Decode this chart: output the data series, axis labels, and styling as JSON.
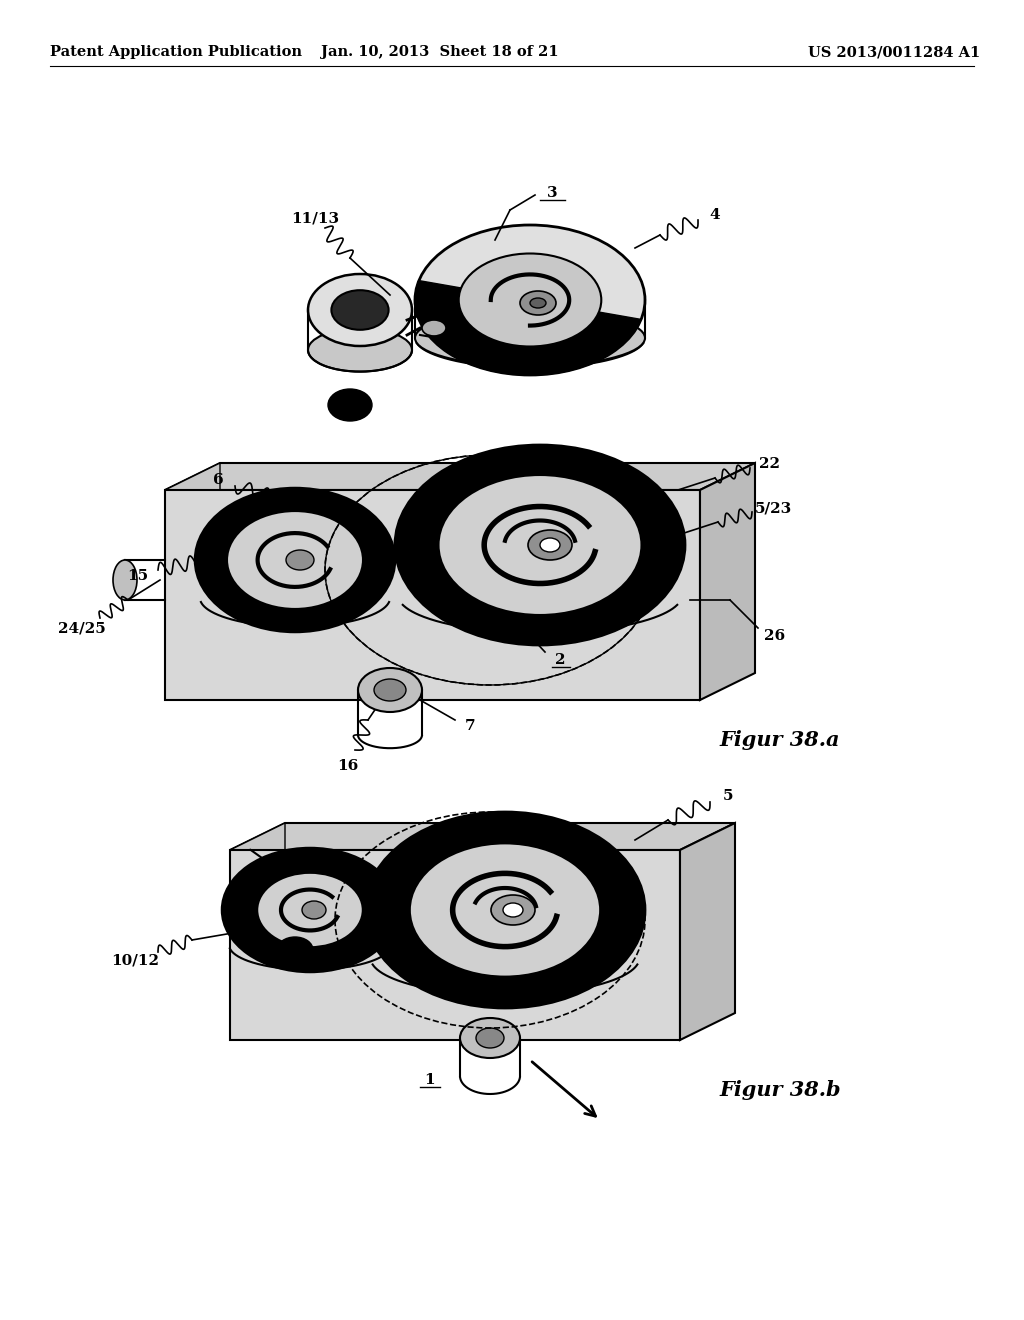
{
  "background_color": "#ffffff",
  "header_left": "Patent Application Publication",
  "header_center": "Jan. 10, 2013  Sheet 18 of 21",
  "header_right": "US 2013/0011284 A1",
  "header_fontsize": 10.5,
  "fig_a_label": "Figur 38.a",
  "fig_b_label": "Figur 38.b",
  "ann_fontsize": 11
}
